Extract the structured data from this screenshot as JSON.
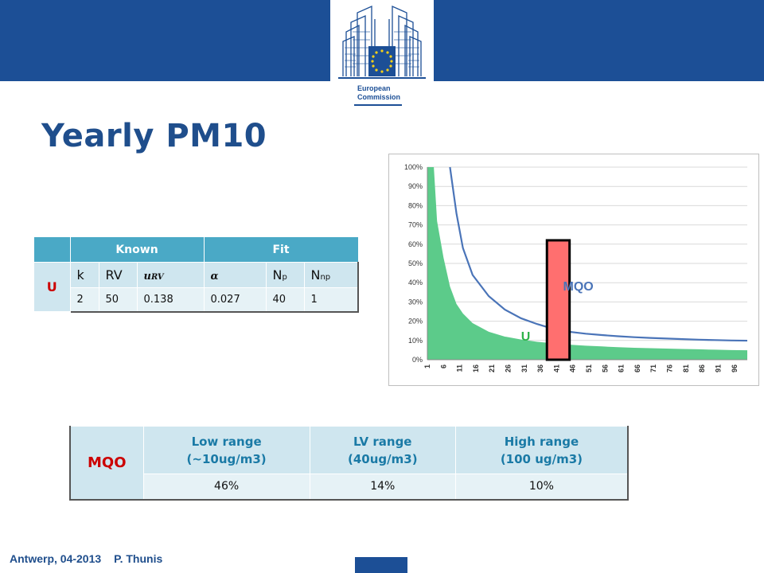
{
  "logo": {
    "name": [
      "European",
      "Commission"
    ]
  },
  "title": "Yearly PM10",
  "fit_table": {
    "headers": {
      "known": "Known",
      "fit": "Fit"
    },
    "row_label": "U",
    "columns": {
      "k": "k",
      "rv": "RV",
      "urv": "u",
      "urv_sub": "RV",
      "alpha": "α",
      "np": "N",
      "np_sub": "p",
      "nnp": "N",
      "nnp_sub": "np"
    },
    "values": {
      "k": "2",
      "rv": "50",
      "urv": "0.138",
      "alpha": "0.027",
      "np": "40",
      "nnp": "1"
    }
  },
  "mqo_table": {
    "row_label": "MQO",
    "headers": [
      {
        "line1": "Low range",
        "line2": "(~10ug/m3)"
      },
      {
        "line1": "LV range",
        "line2": "(40ug/m3)"
      },
      {
        "line1": "High range",
        "line2": "(100 ug/m3)"
      }
    ],
    "values": [
      "46%",
      "14%",
      "10%"
    ]
  },
  "chart_data": {
    "type": "area",
    "x_tick_labels": [
      "1",
      "6",
      "11",
      "16",
      "21",
      "26",
      "31",
      "36",
      "41",
      "46",
      "51",
      "56",
      "61",
      "66",
      "71",
      "76",
      "81",
      "86",
      "91",
      "96"
    ],
    "y_tick_labels": [
      "0%",
      "10%",
      "20%",
      "30%",
      "40%",
      "50%",
      "60%",
      "70%",
      "80%",
      "90%",
      "100%"
    ],
    "ylim": [
      0,
      100
    ],
    "xlim": [
      1,
      100
    ],
    "series": [
      {
        "name": "MQO",
        "kind": "line",
        "color": "#4a74b8",
        "x": [
          8,
          10,
          12,
          15,
          20,
          25,
          30,
          35,
          40,
          45,
          50,
          55,
          60,
          65,
          70,
          75,
          80,
          85,
          90,
          95,
          100
        ],
        "values": [
          100,
          76,
          58,
          44,
          33,
          26,
          21.5,
          18.5,
          16,
          14.5,
          13.5,
          12.8,
          12.2,
          11.7,
          11.3,
          11,
          10.7,
          10.4,
          10.2,
          10,
          9.9
        ]
      },
      {
        "name": "U",
        "kind": "area",
        "color": "#5ccb8a",
        "x": [
          1,
          3,
          4,
          6,
          8,
          10,
          12,
          15,
          20,
          25,
          30,
          35,
          40,
          45,
          50,
          55,
          60,
          65,
          70,
          75,
          80,
          85,
          90,
          95,
          100
        ],
        "values": [
          100,
          100,
          72,
          53,
          38,
          29,
          24,
          19,
          14.5,
          12,
          10.5,
          9.3,
          8.5,
          7.8,
          7.3,
          6.9,
          6.5,
          6.2,
          6,
          5.8,
          5.6,
          5.4,
          5.2,
          5,
          4.9
        ]
      }
    ],
    "highlight": {
      "x_from": 38,
      "x_to": 45,
      "y_from": 0,
      "y_to": 62,
      "fill": "#ff6f6f",
      "stroke": "#000000"
    },
    "annotations": [
      {
        "text": "MQO",
        "x": 43,
        "y": 36,
        "color": "#4a74b8"
      },
      {
        "text": "U",
        "x": 30,
        "y": 10,
        "color": "#2fb34a"
      }
    ],
    "grid": true
  },
  "footer": {
    "place_date": "Antwerp, 04-2013",
    "author": "P. Thunis"
  },
  "colors": {
    "brand_blue": "#1c4f96",
    "title_blue": "#1f4e8c",
    "table_header": "#4aa9c6",
    "label_red": "#cc0000"
  }
}
